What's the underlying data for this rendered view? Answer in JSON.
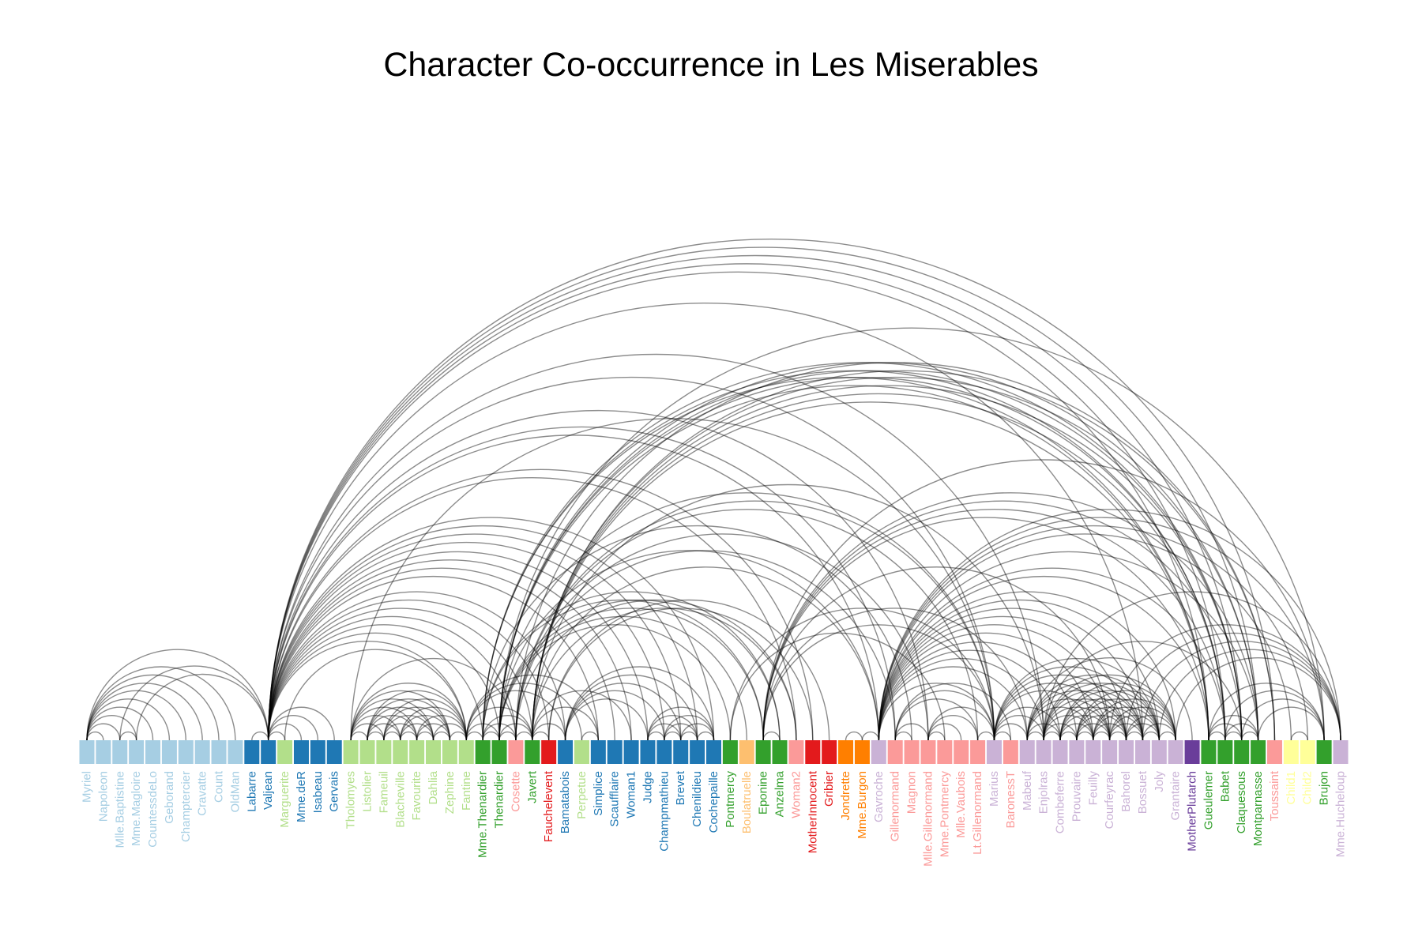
{
  "title": "Character Co-occurrence in Les Miserables",
  "group_colors": {
    "1": "#a6cee3",
    "2": "#1f78b4",
    "3": "#b2df8a",
    "4": "#33a02c",
    "5": "#fb9a99",
    "6": "#e31a1c",
    "7": "#fdbf6f",
    "8": "#ff7f00",
    "9": "#cab2d6",
    "10": "#6a3d9a",
    "11": "#ffff99"
  },
  "nodes": [
    {
      "name": "Myriel",
      "group": 1
    },
    {
      "name": "Napoleon",
      "group": 1
    },
    {
      "name": "Mlle.Baptistine",
      "group": 1
    },
    {
      "name": "Mme.Magloire",
      "group": 1
    },
    {
      "name": "CountessdeLo",
      "group": 1
    },
    {
      "name": "Geborand",
      "group": 1
    },
    {
      "name": "Champtercier",
      "group": 1
    },
    {
      "name": "Cravatte",
      "group": 1
    },
    {
      "name": "Count",
      "group": 1
    },
    {
      "name": "OldMan",
      "group": 1
    },
    {
      "name": "Labarre",
      "group": 2
    },
    {
      "name": "Valjean",
      "group": 2
    },
    {
      "name": "Marguerite",
      "group": 3
    },
    {
      "name": "Mme.deR",
      "group": 2
    },
    {
      "name": "Isabeau",
      "group": 2
    },
    {
      "name": "Gervais",
      "group": 2
    },
    {
      "name": "Tholomyes",
      "group": 3
    },
    {
      "name": "Listolier",
      "group": 3
    },
    {
      "name": "Fameuil",
      "group": 3
    },
    {
      "name": "Blacheville",
      "group": 3
    },
    {
      "name": "Favourite",
      "group": 3
    },
    {
      "name": "Dahlia",
      "group": 3
    },
    {
      "name": "Zephine",
      "group": 3
    },
    {
      "name": "Fantine",
      "group": 3
    },
    {
      "name": "Mme.Thenardier",
      "group": 4
    },
    {
      "name": "Thenardier",
      "group": 4
    },
    {
      "name": "Cosette",
      "group": 5
    },
    {
      "name": "Javert",
      "group": 4
    },
    {
      "name": "Fauchelevent",
      "group": 6
    },
    {
      "name": "Bamatabois",
      "group": 2
    },
    {
      "name": "Perpetue",
      "group": 3
    },
    {
      "name": "Simplice",
      "group": 2
    },
    {
      "name": "Scaufflaire",
      "group": 2
    },
    {
      "name": "Woman1",
      "group": 2
    },
    {
      "name": "Judge",
      "group": 2
    },
    {
      "name": "Champmathieu",
      "group": 2
    },
    {
      "name": "Brevet",
      "group": 2
    },
    {
      "name": "Chenildieu",
      "group": 2
    },
    {
      "name": "Cochepaille",
      "group": 2
    },
    {
      "name": "Pontmercy",
      "group": 4
    },
    {
      "name": "Boulatruelle",
      "group": 7
    },
    {
      "name": "Eponine",
      "group": 4
    },
    {
      "name": "Anzelma",
      "group": 4
    },
    {
      "name": "Woman2",
      "group": 5
    },
    {
      "name": "MotherInnocent",
      "group": 6
    },
    {
      "name": "Gribier",
      "group": 6
    },
    {
      "name": "Jondrette",
      "group": 8
    },
    {
      "name": "Mme.Burgon",
      "group": 8
    },
    {
      "name": "Gavroche",
      "group": 9
    },
    {
      "name": "Gillenormand",
      "group": 5
    },
    {
      "name": "Magnon",
      "group": 5
    },
    {
      "name": "Mlle.Gillenormand",
      "group": 5
    },
    {
      "name": "Mme.Pontmercy",
      "group": 5
    },
    {
      "name": "Mlle.Vaubois",
      "group": 5
    },
    {
      "name": "Lt.Gillenormand",
      "group": 5
    },
    {
      "name": "Marius",
      "group": 9
    },
    {
      "name": "BaronessT",
      "group": 5
    },
    {
      "name": "Mabeuf",
      "group": 9
    },
    {
      "name": "Enjolras",
      "group": 9
    },
    {
      "name": "Combeferre",
      "group": 9
    },
    {
      "name": "Prouvaire",
      "group": 9
    },
    {
      "name": "Feuilly",
      "group": 9
    },
    {
      "name": "Courfeyrac",
      "group": 9
    },
    {
      "name": "Bahorel",
      "group": 9
    },
    {
      "name": "Bossuet",
      "group": 9
    },
    {
      "name": "Joly",
      "group": 9
    },
    {
      "name": "Grantaire",
      "group": 9
    },
    {
      "name": "MotherPlutarch",
      "group": 10
    },
    {
      "name": "Gueulemer",
      "group": 4
    },
    {
      "name": "Babet",
      "group": 4
    },
    {
      "name": "Claquesous",
      "group": 4
    },
    {
      "name": "Montparnasse",
      "group": 4
    },
    {
      "name": "Toussaint",
      "group": 5
    },
    {
      "name": "Child1",
      "group": 11
    },
    {
      "name": "Child2",
      "group": 11
    },
    {
      "name": "Brujon",
      "group": 4
    },
    {
      "name": "Mme.Hucheloup",
      "group": 9
    }
  ],
  "links": [
    [
      1,
      0
    ],
    [
      2,
      0
    ],
    [
      3,
      0
    ],
    [
      3,
      2
    ],
    [
      4,
      0
    ],
    [
      5,
      0
    ],
    [
      6,
      0
    ],
    [
      7,
      0
    ],
    [
      8,
      0
    ],
    [
      9,
      0
    ],
    [
      11,
      10
    ],
    [
      11,
      3
    ],
    [
      11,
      2
    ],
    [
      11,
      0
    ],
    [
      12,
      11
    ],
    [
      13,
      11
    ],
    [
      14,
      11
    ],
    [
      15,
      11
    ],
    [
      17,
      16
    ],
    [
      18,
      16
    ],
    [
      18,
      17
    ],
    [
      19,
      16
    ],
    [
      19,
      17
    ],
    [
      19,
      18
    ],
    [
      20,
      16
    ],
    [
      20,
      17
    ],
    [
      20,
      18
    ],
    [
      20,
      19
    ],
    [
      21,
      16
    ],
    [
      21,
      17
    ],
    [
      21,
      18
    ],
    [
      21,
      19
    ],
    [
      21,
      20
    ],
    [
      22,
      16
    ],
    [
      22,
      17
    ],
    [
      22,
      18
    ],
    [
      22,
      19
    ],
    [
      22,
      20
    ],
    [
      22,
      21
    ],
    [
      23,
      16
    ],
    [
      23,
      17
    ],
    [
      23,
      18
    ],
    [
      23,
      19
    ],
    [
      23,
      20
    ],
    [
      23,
      21
    ],
    [
      23,
      22
    ],
    [
      23,
      12
    ],
    [
      23,
      11
    ],
    [
      24,
      23
    ],
    [
      24,
      11
    ],
    [
      25,
      24
    ],
    [
      25,
      11
    ],
    [
      25,
      23
    ],
    [
      26,
      24
    ],
    [
      26,
      11
    ],
    [
      26,
      16
    ],
    [
      26,
      25
    ],
    [
      27,
      11
    ],
    [
      27,
      23
    ],
    [
      27,
      25
    ],
    [
      27,
      24
    ],
    [
      27,
      26
    ],
    [
      28,
      11
    ],
    [
      28,
      27
    ],
    [
      29,
      23
    ],
    [
      29,
      27
    ],
    [
      29,
      11
    ],
    [
      30,
      23
    ],
    [
      31,
      30
    ],
    [
      31,
      11
    ],
    [
      31,
      23
    ],
    [
      31,
      27
    ],
    [
      32,
      11
    ],
    [
      33,
      11
    ],
    [
      33,
      27
    ],
    [
      34,
      11
    ],
    [
      34,
      29
    ],
    [
      35,
      11
    ],
    [
      35,
      34
    ],
    [
      35,
      29
    ],
    [
      36,
      34
    ],
    [
      36,
      35
    ],
    [
      36,
      11
    ],
    [
      36,
      29
    ],
    [
      37,
      34
    ],
    [
      37,
      35
    ],
    [
      37,
      36
    ],
    [
      37,
      11
    ],
    [
      37,
      29
    ],
    [
      38,
      34
    ],
    [
      38,
      35
    ],
    [
      38,
      36
    ],
    [
      38,
      37
    ],
    [
      38,
      11
    ],
    [
      38,
      29
    ],
    [
      39,
      25
    ],
    [
      40,
      25
    ],
    [
      41,
      24
    ],
    [
      41,
      25
    ],
    [
      42,
      41
    ],
    [
      42,
      25
    ],
    [
      42,
      24
    ],
    [
      43,
      11
    ],
    [
      43,
      26
    ],
    [
      43,
      27
    ],
    [
      44,
      28
    ],
    [
      44,
      11
    ],
    [
      45,
      28
    ],
    [
      47,
      46
    ],
    [
      48,
      47
    ],
    [
      48,
      25
    ],
    [
      48,
      27
    ],
    [
      48,
      11
    ],
    [
      49,
      26
    ],
    [
      49,
      11
    ],
    [
      50,
      49
    ],
    [
      50,
      24
    ],
    [
      51,
      49
    ],
    [
      51,
      26
    ],
    [
      51,
      11
    ],
    [
      52,
      51
    ],
    [
      52,
      39
    ],
    [
      53,
      51
    ],
    [
      54,
      51
    ],
    [
      54,
      49
    ],
    [
      54,
      26
    ],
    [
      55,
      51
    ],
    [
      55,
      49
    ],
    [
      55,
      39
    ],
    [
      55,
      54
    ],
    [
      55,
      26
    ],
    [
      55,
      11
    ],
    [
      55,
      16
    ],
    [
      55,
      25
    ],
    [
      55,
      41
    ],
    [
      55,
      48
    ],
    [
      56,
      49
    ],
    [
      56,
      55
    ],
    [
      57,
      55
    ],
    [
      57,
      41
    ],
    [
      57,
      48
    ],
    [
      58,
      55
    ],
    [
      58,
      48
    ],
    [
      58,
      27
    ],
    [
      58,
      57
    ],
    [
      58,
      11
    ],
    [
      59,
      58
    ],
    [
      59,
      55
    ],
    [
      59,
      48
    ],
    [
      59,
      57
    ],
    [
      60,
      48
    ],
    [
      60,
      58
    ],
    [
      60,
      59
    ],
    [
      61,
      48
    ],
    [
      61,
      58
    ],
    [
      61,
      60
    ],
    [
      61,
      59
    ],
    [
      61,
      57
    ],
    [
      61,
      55
    ],
    [
      62,
      55
    ],
    [
      62,
      58
    ],
    [
      62,
      59
    ],
    [
      62,
      48
    ],
    [
      62,
      57
    ],
    [
      62,
      41
    ],
    [
      62,
      61
    ],
    [
      62,
      60
    ],
    [
      63,
      59
    ],
    [
      63,
      48
    ],
    [
      63,
      62
    ],
    [
      63,
      57
    ],
    [
      63,
      58
    ],
    [
      63,
      61
    ],
    [
      63,
      60
    ],
    [
      63,
      55
    ],
    [
      64,
      55
    ],
    [
      64,
      62
    ],
    [
      64,
      48
    ],
    [
      64,
      63
    ],
    [
      64,
      58
    ],
    [
      64,
      61
    ],
    [
      64,
      60
    ],
    [
      64,
      59
    ],
    [
      64,
      57
    ],
    [
      64,
      11
    ],
    [
      65,
      63
    ],
    [
      65,
      64
    ],
    [
      65,
      48
    ],
    [
      65,
      62
    ],
    [
      65,
      58
    ],
    [
      65,
      61
    ],
    [
      65,
      60
    ],
    [
      65,
      59
    ],
    [
      65,
      57
    ],
    [
      65,
      55
    ],
    [
      66,
      64
    ],
    [
      66,
      58
    ],
    [
      66,
      59
    ],
    [
      66,
      62
    ],
    [
      66,
      65
    ],
    [
      66,
      48
    ],
    [
      66,
      63
    ],
    [
      66,
      61
    ],
    [
      66,
      60
    ],
    [
      67,
      57
    ],
    [
      68,
      25
    ],
    [
      68,
      11
    ],
    [
      68,
      24
    ],
    [
      68,
      27
    ],
    [
      68,
      48
    ],
    [
      68,
      41
    ],
    [
      69,
      25
    ],
    [
      69,
      68
    ],
    [
      69,
      11
    ],
    [
      69,
      24
    ],
    [
      69,
      27
    ],
    [
      69,
      48
    ],
    [
      69,
      41
    ],
    [
      70,
      25
    ],
    [
      70,
      69
    ],
    [
      70,
      68
    ],
    [
      70,
      11
    ],
    [
      70,
      24
    ],
    [
      70,
      27
    ],
    [
      70,
      41
    ],
    [
      70,
      58
    ],
    [
      71,
      27
    ],
    [
      71,
      69
    ],
    [
      71,
      68
    ],
    [
      71,
      70
    ],
    [
      71,
      11
    ],
    [
      71,
      48
    ],
    [
      71,
      41
    ],
    [
      71,
      25
    ],
    [
      72,
      26
    ],
    [
      72,
      27
    ],
    [
      72,
      11
    ],
    [
      73,
      48
    ],
    [
      74,
      48
    ],
    [
      74,
      73
    ],
    [
      75,
      69
    ],
    [
      75,
      68
    ],
    [
      75,
      25
    ],
    [
      75,
      48
    ],
    [
      75,
      41
    ],
    [
      75,
      70
    ],
    [
      75,
      71
    ],
    [
      76,
      64
    ],
    [
      76,
      65
    ],
    [
      76,
      66
    ],
    [
      76,
      63
    ],
    [
      76,
      62
    ],
    [
      76,
      48
    ],
    [
      76,
      58
    ]
  ]
}
